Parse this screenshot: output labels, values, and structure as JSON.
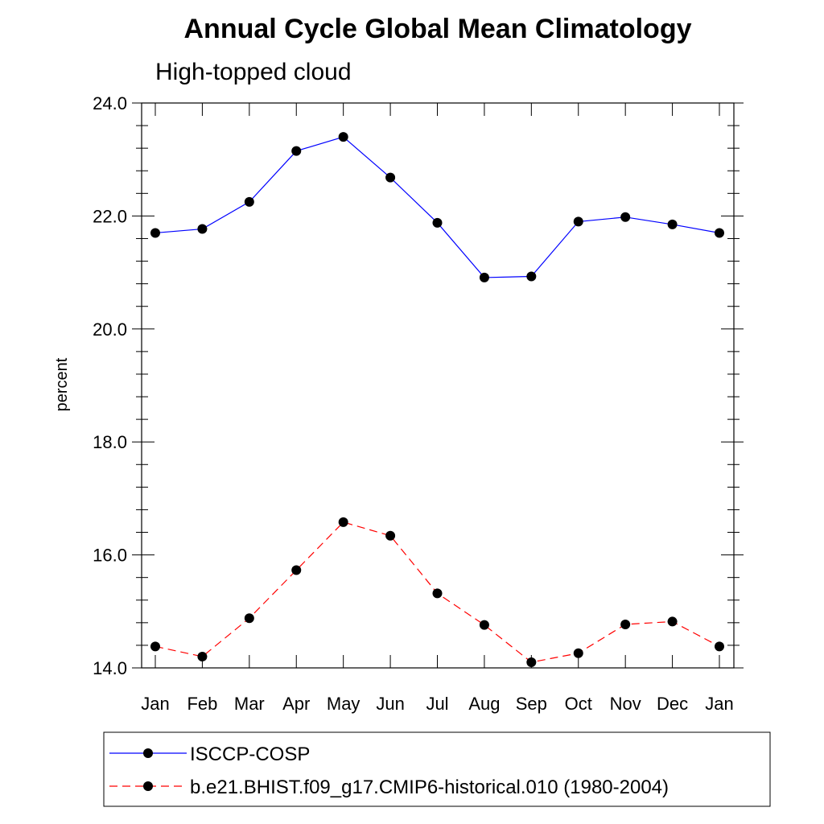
{
  "chart_data": {
    "type": "line",
    "title": "Annual Cycle Global Mean Climatology",
    "subtitle": "High-topped cloud",
    "xlabel": "",
    "ylabel": "percent",
    "categories": [
      "Jan",
      "Feb",
      "Mar",
      "Apr",
      "May",
      "Jun",
      "Jul",
      "Aug",
      "Sep",
      "Oct",
      "Nov",
      "Dec",
      "Jan"
    ],
    "ylim": [
      14.0,
      24.0
    ],
    "yticks": [
      14.0,
      16.0,
      18.0,
      20.0,
      22.0,
      24.0
    ],
    "ytick_labels": [
      "14.0",
      "16.0",
      "18.0",
      "20.0",
      "22.0",
      "24.0"
    ],
    "legend_position": "bottom",
    "series": [
      {
        "name": "ISCCP-COSP",
        "color": "#0000ff",
        "style": "solid",
        "values": [
          21.7,
          21.77,
          22.25,
          23.15,
          23.4,
          22.68,
          21.88,
          20.91,
          20.93,
          21.9,
          21.98,
          21.85,
          21.7
        ]
      },
      {
        "name": "b.e21.BHIST.f09_g17.CMIP6-historical.010 (1980-2004)",
        "color": "#ff0000",
        "style": "dashed",
        "values": [
          14.38,
          14.2,
          14.88,
          15.73,
          16.58,
          16.34,
          15.32,
          14.76,
          14.1,
          14.26,
          14.77,
          14.82,
          14.38
        ]
      }
    ]
  }
}
